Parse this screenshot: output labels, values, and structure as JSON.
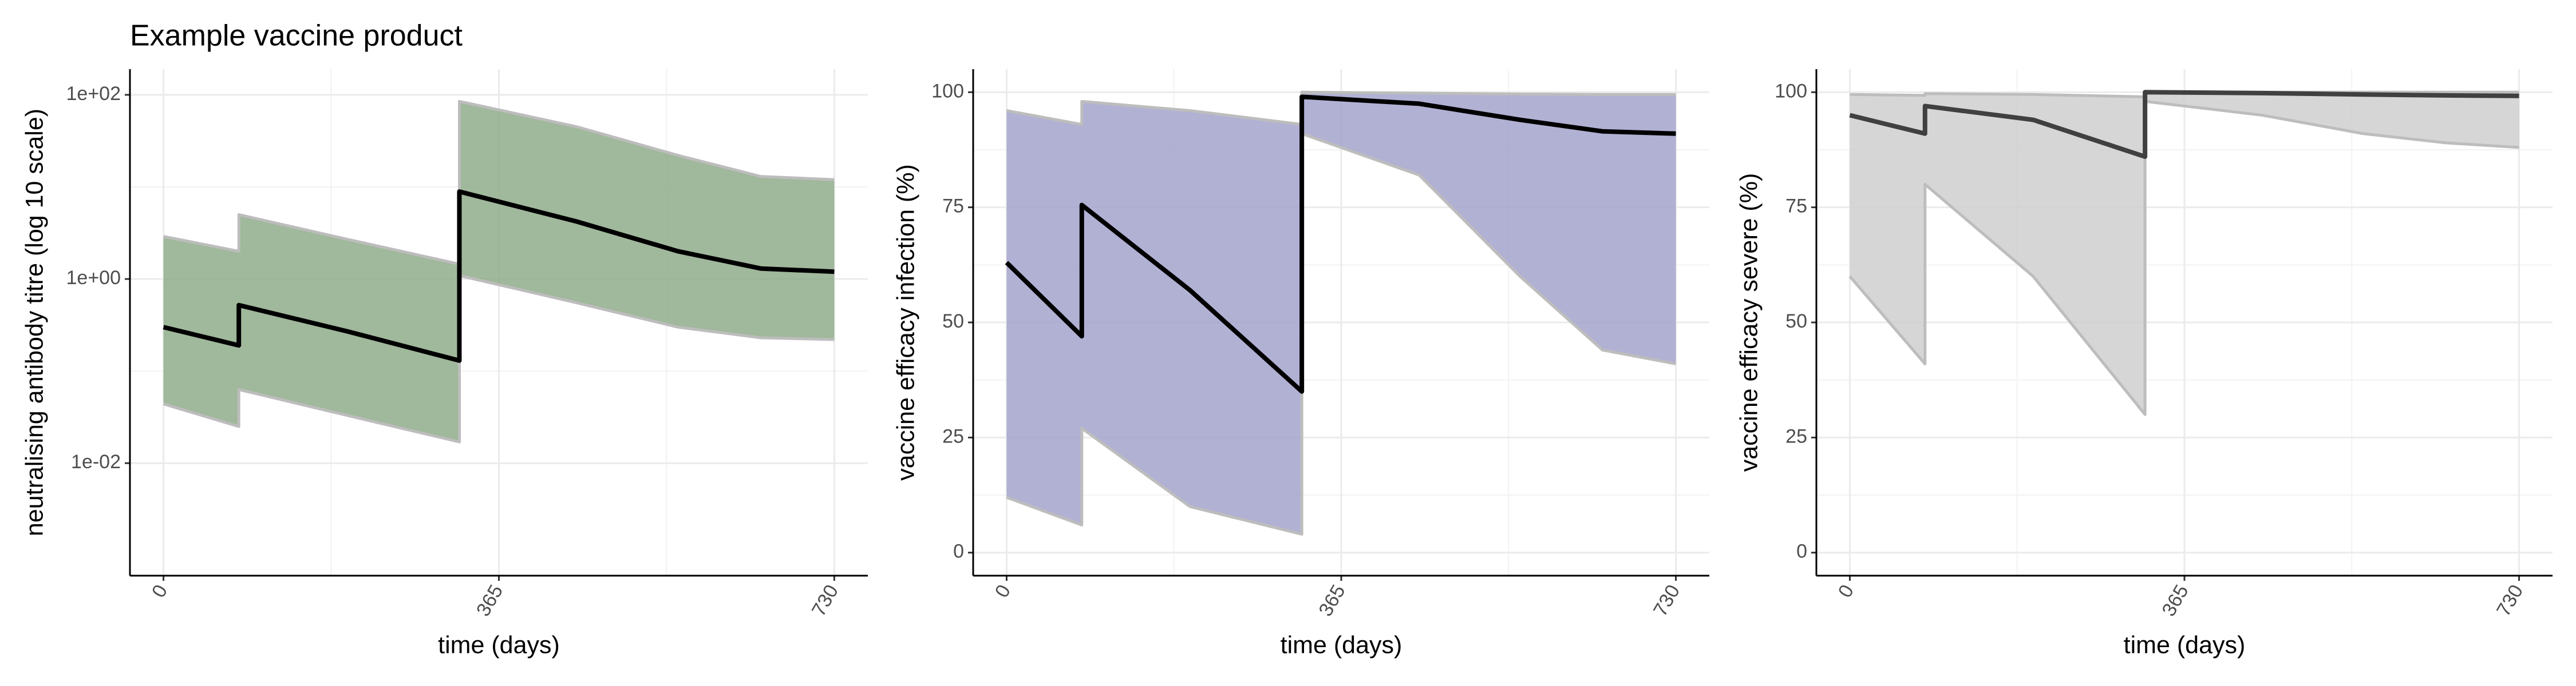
{
  "chart_data": [
    {
      "type": "line",
      "title": "Example vaccine product",
      "xlabel": "time (days)",
      "ylabel": "neutralising antibody titre (log 10 scale)",
      "log_y": true,
      "grid": true,
      "band_color": "#8fac8a",
      "x": [
        0,
        82,
        82,
        200,
        322,
        322,
        450,
        560,
        650,
        730
      ],
      "xlim": [
        -36.5,
        766.5
      ],
      "xticks": [
        0,
        365,
        730
      ],
      "ylim": [
        0.0006,
        190
      ],
      "yticks": [
        {
          "value": 0.01,
          "label": "1e-02"
        },
        {
          "value": 1,
          "label": "1e+00"
        },
        {
          "value": 100,
          "label": "1e+02"
        }
      ],
      "series": [
        {
          "color": "#bdbdbd",
          "values": [
            2.9,
            2.0,
            5.0,
            2.7,
            1.45,
            85,
            45,
            22,
            13,
            12
          ]
        },
        {
          "color": "#bdbdbd",
          "values": [
            0.044,
            0.025,
            0.063,
            0.033,
            0.017,
            1.09,
            0.55,
            0.3,
            0.23,
            0.22
          ]
        },
        {
          "color": "#000000",
          "values": [
            0.3,
            0.19,
            0.52,
            0.27,
            0.13,
            8.9,
            4.2,
            2.0,
            1.3,
            1.2
          ]
        }
      ]
    },
    {
      "type": "line",
      "xlabel": "time (days)",
      "ylabel": "vaccine efficacy infection (%)",
      "log_y": false,
      "grid": true,
      "band_color": "#a3a3cc",
      "x": [
        0,
        82,
        82,
        200,
        322,
        322,
        450,
        560,
        650,
        730
      ],
      "xlim": [
        -36.5,
        766.5
      ],
      "xticks": [
        0,
        365,
        730
      ],
      "ylim": [
        -5,
        105
      ],
      "yticks": [
        0,
        25,
        50,
        75,
        100
      ],
      "series": [
        {
          "color": "#bdbdbd",
          "values": [
            96,
            93,
            98,
            96,
            93,
            100,
            99.8,
            99.6,
            99.5,
            99.5
          ]
        },
        {
          "color": "#bdbdbd",
          "values": [
            12,
            6,
            27,
            10,
            4,
            91,
            82,
            60,
            44,
            41
          ]
        },
        {
          "color": "#000000",
          "values": [
            63,
            47,
            75.5,
            57,
            35,
            99,
            97.5,
            94,
            91.5,
            91
          ]
        }
      ]
    },
    {
      "type": "line",
      "xlabel": "time (days)",
      "ylabel": "vaccine efficacy severe (%)",
      "log_y": false,
      "grid": true,
      "band_color": "#cfcfcf",
      "x": [
        0,
        82,
        82,
        200,
        322,
        322,
        450,
        560,
        650,
        730
      ],
      "xlim": [
        -36.5,
        766.5
      ],
      "xticks": [
        0,
        365,
        730
      ],
      "ylim": [
        -5,
        105
      ],
      "yticks": [
        0,
        25,
        50,
        75,
        100
      ],
      "series": [
        {
          "color": "#bdbdbd",
          "values": [
            99.5,
            99.3,
            99.7,
            99.5,
            99,
            100,
            100,
            100,
            100,
            100
          ]
        },
        {
          "color": "#bdbdbd",
          "values": [
            60,
            41,
            80,
            60,
            30,
            98,
            95,
            91,
            89,
            88
          ]
        },
        {
          "color": "#404040",
          "values": [
            95,
            91,
            97,
            94,
            86,
            100,
            99.8,
            99.5,
            99.3,
            99.2
          ]
        }
      ]
    }
  ]
}
